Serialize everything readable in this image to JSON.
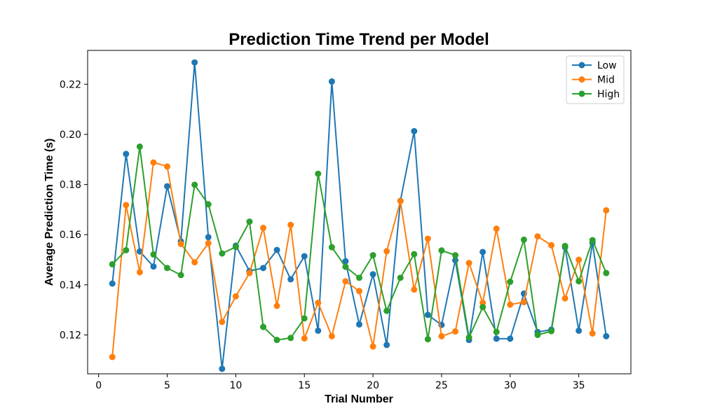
{
  "chart_data": {
    "type": "line",
    "title": "Prediction Time Trend per Model",
    "xlabel": "Trial Number",
    "ylabel": "Average Prediction Time (s)",
    "xlim": [
      -0.8,
      38.8
    ],
    "ylim": [
      0.1045,
      0.2335
    ],
    "xticks": [
      0,
      5,
      10,
      15,
      20,
      25,
      30,
      35
    ],
    "yticks": [
      0.12,
      0.14,
      0.16,
      0.18,
      0.2,
      0.22
    ],
    "ytick_labels": [
      "0.12",
      "0.14",
      "0.16",
      "0.18",
      "0.20",
      "0.22"
    ],
    "grid": false,
    "legend_position": "upper-right",
    "x": [
      1,
      2,
      3,
      4,
      5,
      6,
      7,
      8,
      9,
      10,
      11,
      12,
      13,
      14,
      15,
      16,
      17,
      18,
      19,
      20,
      21,
      22,
      23,
      24,
      25,
      26,
      27,
      28,
      29,
      30,
      31,
      32,
      33,
      34,
      35,
      36,
      37
    ],
    "series": [
      {
        "name": "Low",
        "color": "#1f77b4",
        "values": [
          0.1405,
          0.1922,
          0.1533,
          0.1473,
          0.1793,
          0.1573,
          0.2287,
          0.159,
          0.1065,
          0.1556,
          0.1455,
          0.1467,
          0.1539,
          0.1422,
          0.1514,
          0.1217,
          0.2211,
          0.1494,
          0.1242,
          0.1442,
          0.116,
          0.1735,
          0.2013,
          0.128,
          0.124,
          0.1498,
          0.118,
          0.1531,
          0.1185,
          0.1185,
          0.1365,
          0.1212,
          0.1221,
          0.155,
          0.1217,
          0.1567,
          0.1195
        ]
      },
      {
        "name": "Mid",
        "color": "#ff7f0e",
        "values": [
          0.1112,
          0.1718,
          0.145,
          0.1888,
          0.1872,
          0.1563,
          0.149,
          0.1566,
          0.1252,
          0.1354,
          0.1447,
          0.1627,
          0.1316,
          0.1639,
          0.1186,
          0.1328,
          0.1195,
          0.1414,
          0.1375,
          0.1154,
          0.1534,
          0.1734,
          0.1381,
          0.1584,
          0.1195,
          0.1214,
          0.1487,
          0.1328,
          0.1624,
          0.1321,
          0.1331,
          0.1593,
          0.1558,
          0.1346,
          0.15,
          0.1206,
          0.1697
        ]
      },
      {
        "name": "High",
        "color": "#2ca02c",
        "values": [
          0.1482,
          0.1538,
          0.1951,
          0.1521,
          0.1467,
          0.1439,
          0.1799,
          0.1721,
          0.1525,
          0.1551,
          0.1652,
          0.1232,
          0.118,
          0.1188,
          0.1266,
          0.1843,
          0.155,
          0.1472,
          0.1428,
          0.1518,
          0.1296,
          0.1428,
          0.1522,
          0.1183,
          0.1537,
          0.1518,
          0.119,
          0.1311,
          0.1212,
          0.1412,
          0.158,
          0.12,
          0.1215,
          0.1555,
          0.1414,
          0.1578,
          0.1447
        ]
      }
    ]
  }
}
